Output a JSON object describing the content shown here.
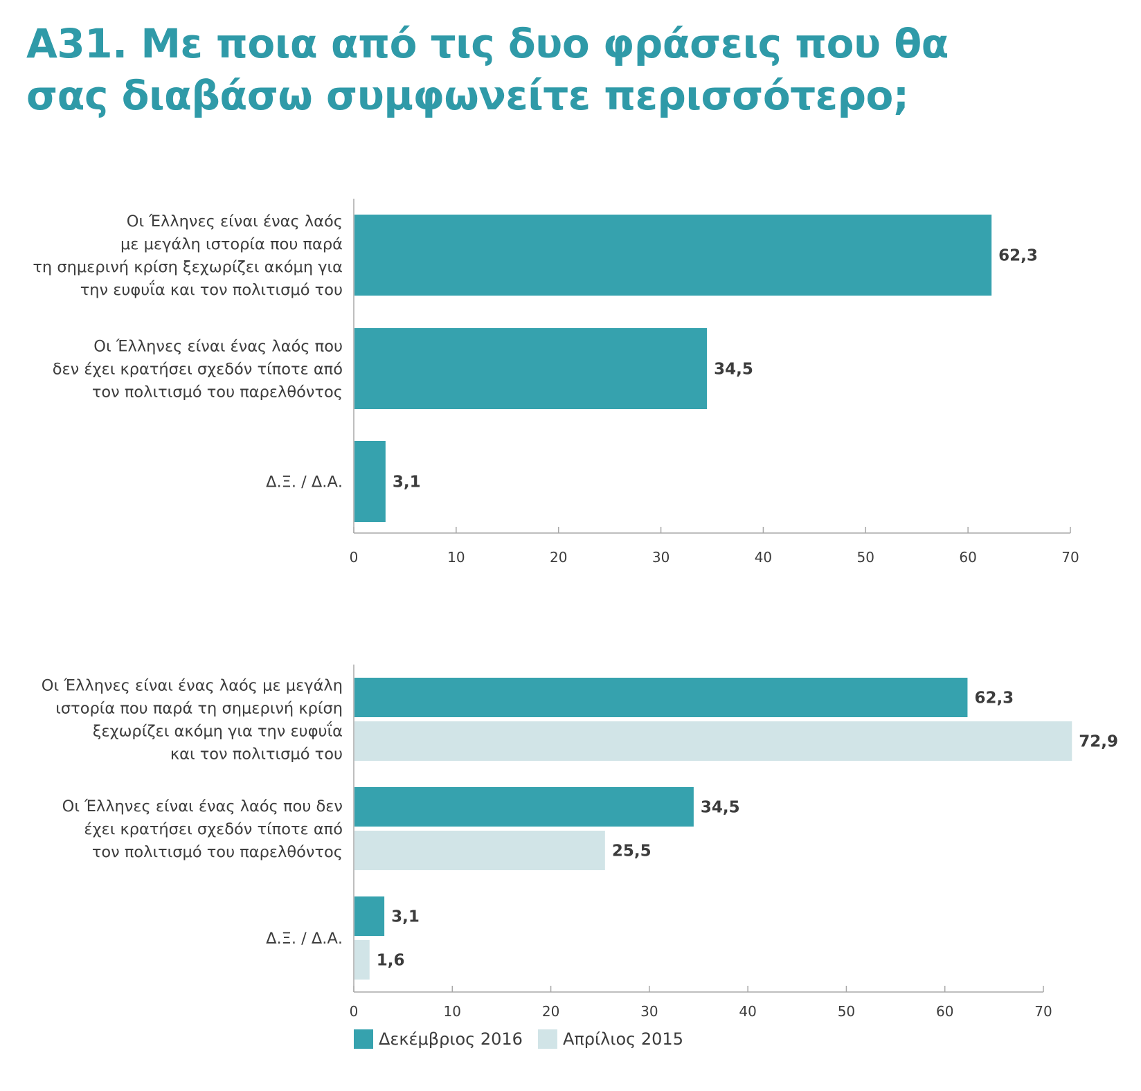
{
  "title": {
    "line1": "Α31. Με ποια από τις δυο φράσεις που θα",
    "line2": "σας διαβάσω συμφωνείτε περισσότερο;"
  },
  "colors": {
    "primary": "#36a2ae",
    "secondary": "#d1e4e7",
    "axis": "#a8a8a8",
    "title": "#2f9aa8"
  },
  "chart_data": [
    {
      "type": "bar",
      "orientation": "horizontal",
      "categories": [
        [
          "Οι Έλληνες είναι ένας λαός",
          "με μεγάλη ιστορία που παρά",
          "τη σημερινή κρίση ξεχωρίζει ακόμη για",
          "την ευφυΐα και τον πολιτισμό του"
        ],
        [
          "Οι Έλληνες είναι ένας λαός που",
          "δεν έχει κρατήσει σχεδόν τίποτε από",
          "τον πολιτισμό του παρελθόντος"
        ],
        [
          "Δ.Ξ. / Δ.Α."
        ]
      ],
      "series": [
        {
          "values": [
            62.3,
            34.5,
            3.1
          ],
          "labels": [
            "62,3",
            "34,5",
            "3,1"
          ],
          "color": "#36a2ae"
        }
      ],
      "xlim": [
        0,
        70
      ],
      "ticks": [
        "0",
        "10",
        "20",
        "30",
        "40",
        "50",
        "60",
        "70"
      ],
      "grid": false
    },
    {
      "type": "bar",
      "orientation": "horizontal",
      "categories": [
        [
          "Οι Έλληνες είναι ένας λαός με μεγάλη",
          "ιστορία που παρά τη σημερινή κρίση",
          "ξεχωρίζει ακόμη για την ευφυΐα",
          "και τον πολιτισμό του"
        ],
        [
          "Οι Έλληνες είναι ένας λαός που δεν",
          "έχει κρατήσει σχεδόν τίποτε από",
          "τον πολιτισμό του παρελθόντος"
        ],
        [
          "Δ.Ξ. / Δ.Α."
        ]
      ],
      "series": [
        {
          "name": "Δεκέμβριος 2016",
          "values": [
            62.3,
            34.5,
            3.1
          ],
          "labels": [
            "62,3",
            "34,5",
            "3,1"
          ],
          "color": "#36a2ae"
        },
        {
          "name": "Απρίλιος 2015",
          "values": [
            72.9,
            25.5,
            1.6
          ],
          "labels": [
            "72,9",
            "25,5",
            "1,6"
          ],
          "color": "#d1e4e7"
        }
      ],
      "xlim": [
        0,
        70
      ],
      "ticks": [
        "0",
        "10",
        "20",
        "30",
        "40",
        "50",
        "60",
        "70"
      ],
      "grid": false,
      "legend": "bottom-left"
    }
  ]
}
